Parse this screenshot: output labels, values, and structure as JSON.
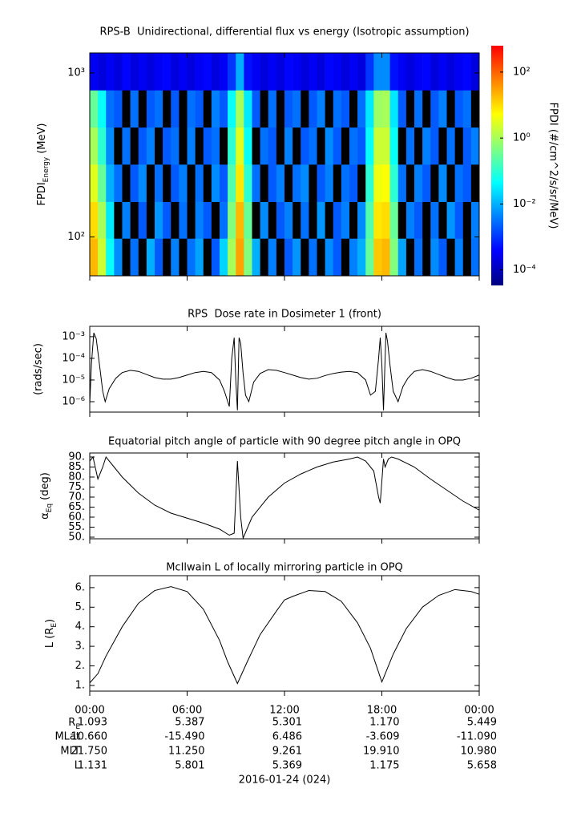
{
  "chart_data": [
    {
      "type": "heatmap",
      "title": "RPS-B  Unidirectional, differential flux vs energy (Isotropic assumption)",
      "ylabel": {
        "text": "FPDI",
        "sub": "Energy",
        "suffix": "(MeV)"
      },
      "xlim": [
        0,
        24
      ],
      "xticks": [
        0,
        6,
        12,
        18,
        24
      ],
      "ylim": [
        58,
        1324
      ],
      "ylog": true,
      "yticks": [
        {
          "value": 100,
          "label": "10²"
        },
        {
          "value": 1000,
          "label": "10³"
        }
      ],
      "time_edges": [
        0,
        0.5,
        1,
        1.5,
        2,
        2.5,
        3,
        3.5,
        4,
        4.5,
        5,
        5.5,
        6,
        6.5,
        7,
        7.5,
        8,
        8.5,
        9,
        9.5,
        10,
        10.5,
        11,
        11.5,
        12,
        12.5,
        13,
        13.5,
        14,
        14.5,
        15,
        15.5,
        16,
        16.5,
        17,
        17.5,
        18,
        18.5,
        19,
        19.5,
        20,
        20.5,
        21,
        21.5,
        22,
        22.5,
        23,
        23.5,
        24
      ],
      "energy_edges": [
        58,
        98,
        164,
        277,
        466,
        785,
        1324
      ],
      "z": [
        [
          20,
          2,
          0.05,
          0.005,
          null,
          0.003,
          null,
          0.01,
          0.002,
          null,
          0.004,
          null,
          0.003,
          0.008,
          null,
          0.002,
          0.02,
          1,
          30,
          0.5,
          0.01,
          null,
          0.004,
          null,
          0.002,
          0.006,
          null,
          0.003,
          null,
          0.005,
          0.002,
          null,
          0.004,
          0.01,
          0.3,
          15,
          20,
          0.5,
          0.008,
          null,
          0.003,
          null,
          0.005,
          0.002,
          null,
          0.004,
          null,
          0.003
        ],
        [
          10,
          1,
          0.03,
          null,
          0.004,
          null,
          0.002,
          null,
          0.006,
          0.002,
          null,
          0.003,
          null,
          0.004,
          0.002,
          null,
          0.003,
          0.5,
          20,
          0.3,
          null,
          0.005,
          null,
          0.002,
          0.004,
          null,
          0.003,
          null,
          0.006,
          null,
          0.002,
          0.004,
          null,
          0.005,
          0.2,
          8,
          10,
          0.3,
          null,
          0.004,
          0.002,
          null,
          0.003,
          null,
          0.006,
          0.002,
          null,
          0.004
        ],
        [
          3,
          0.3,
          0.01,
          0.003,
          null,
          0.002,
          0.005,
          null,
          0.003,
          null,
          0.002,
          0.004,
          null,
          0.003,
          null,
          0.005,
          0.002,
          0.2,
          8,
          0.1,
          0.003,
          null,
          0.002,
          0.004,
          null,
          0.003,
          0.005,
          null,
          0.002,
          0.004,
          null,
          0.003,
          0.002,
          null,
          0.1,
          4,
          5,
          0.1,
          0.003,
          null,
          0.004,
          0.002,
          null,
          0.005,
          null,
          0.003,
          0.002,
          null
        ],
        [
          1,
          0.1,
          0.005,
          null,
          0.003,
          null,
          0.002,
          0.004,
          null,
          0.002,
          0.003,
          null,
          0.004,
          null,
          0.002,
          0.003,
          null,
          0.1,
          3,
          0.05,
          null,
          0.003,
          0.002,
          null,
          0.004,
          null,
          0.002,
          0.003,
          null,
          0.005,
          0.002,
          null,
          0.003,
          0.002,
          0.05,
          2,
          2,
          0.05,
          null,
          0.003,
          null,
          0.004,
          0.002,
          null,
          0.003,
          null,
          0.002,
          0.004
        ],
        [
          0.3,
          0.05,
          0.003,
          0.002,
          null,
          0.003,
          null,
          0.002,
          0.003,
          null,
          0.002,
          null,
          0.003,
          0.002,
          null,
          0.004,
          0.002,
          0.05,
          1,
          0.03,
          0.002,
          null,
          0.003,
          null,
          0.002,
          0.003,
          null,
          0.002,
          0.004,
          null,
          0.003,
          0.002,
          null,
          0.003,
          0.03,
          0.8,
          1,
          0.03,
          0.002,
          null,
          0.003,
          null,
          0.002,
          0.004,
          null,
          0.002,
          0.003,
          null
        ],
        [
          0.0003,
          0.0002,
          0.0003,
          0.0002,
          0.0004,
          0.0002,
          0.0003,
          0.0002,
          0.0003,
          0.0004,
          0.0002,
          0.0003,
          0.0002,
          0.0003,
          0.0004,
          0.0002,
          0.0003,
          0.001,
          0.01,
          0.0005,
          0.0003,
          0.0002,
          0.0003,
          0.0002,
          0.0004,
          0.0003,
          0.0002,
          0.0003,
          0.0002,
          0.0004,
          0.0003,
          0.0002,
          0.0003,
          0.0002,
          0.001,
          0.005,
          0.005,
          0.0005,
          0.0003,
          0.0002,
          0.0003,
          0.0004,
          0.0002,
          0.0003,
          0.0002,
          0.0003,
          0.0004,
          0.0002
        ]
      ],
      "colormap": [
        "#00007f",
        "#0000ff",
        "#0080ff",
        "#00ffff",
        "#80ff80",
        "#ffff00",
        "#ff8000",
        "#ff0000"
      ],
      "colorbar": {
        "label": "FPDI (#/cm^2/s/sr/MeV)",
        "zlim": [
          3.4e-05,
          630
        ],
        "log": true,
        "ticks": [
          {
            "value": 100,
            "label": "10²"
          },
          {
            "value": 1,
            "label": "10⁰"
          },
          {
            "value": 0.01,
            "label": "10⁻²"
          },
          {
            "value": 0.0001,
            "label": "10⁻⁴"
          }
        ]
      }
    },
    {
      "type": "line",
      "title": "RPS  Dose rate in Dosimeter 1 (front)",
      "ylabel": "(rads/sec)",
      "xlim": [
        0,
        24
      ],
      "xticks": [
        0,
        6,
        12,
        18,
        24
      ],
      "ylim": [
        3.3e-07,
        0.003
      ],
      "ylog": true,
      "yticks": [
        {
          "value": 0.001,
          "label": "10⁻³"
        },
        {
          "value": 0.0001,
          "label": "10⁻⁴"
        },
        {
          "value": 1e-05,
          "label": "10⁻⁵"
        },
        {
          "value": 1e-06,
          "label": "10⁻⁶"
        }
      ],
      "color": "#000000",
      "x": [
        0,
        0.1,
        0.25,
        0.4,
        0.6,
        0.8,
        0.95,
        1.2,
        1.6,
        2,
        2.5,
        3,
        3.5,
        4,
        4.5,
        5,
        5.5,
        6,
        6.5,
        7,
        7.5,
        8,
        8.3,
        8.6,
        8.75,
        8.9,
        9.0,
        9.1,
        9.2,
        9.3,
        9.45,
        9.6,
        9.8,
        10.1,
        10.5,
        11,
        11.5,
        12,
        12.5,
        13,
        13.5,
        14,
        14.5,
        15,
        15.5,
        16,
        16.5,
        17,
        17.3,
        17.6,
        17.8,
        17.9,
        18.0,
        18.1,
        18.25,
        18.35,
        18.5,
        18.7,
        19.0,
        19.3,
        19.6,
        20,
        20.5,
        21,
        21.5,
        22,
        22.5,
        23,
        23.5,
        24
      ],
      "values": [
        8e-07,
        5e-05,
        0.0015,
        0.0008,
        5e-05,
        3e-06,
        1e-06,
        4e-06,
        1.2e-05,
        2.2e-05,
        2.8e-05,
        2.5e-05,
        1.8e-05,
        1.3e-05,
        1.1e-05,
        1.1e-05,
        1.3e-05,
        1.7e-05,
        2.2e-05,
        2.5e-05,
        2.2e-05,
        1e-05,
        3e-06,
        6e-07,
        0.0001,
        0.0009,
        1e-05,
        4e-07,
        0.0009,
        0.0005,
        2e-05,
        2e-06,
        1e-06,
        8e-06,
        2e-05,
        3e-05,
        2.8e-05,
        2.2e-05,
        1.7e-05,
        1.3e-05,
        1.1e-05,
        1.2e-05,
        1.6e-05,
        2e-05,
        2.3e-05,
        2.5e-05,
        2.2e-05,
        1e-05,
        2e-06,
        3e-06,
        0.0001,
        0.0009,
        5e-05,
        4e-07,
        0.0015,
        0.0006,
        5e-05,
        3e-06,
        1e-06,
        5e-06,
        1.2e-05,
        2.5e-05,
        3e-05,
        2.5e-05,
        1.8e-05,
        1.3e-05,
        1e-05,
        1e-05,
        1.2e-05,
        1.7e-05
      ]
    },
    {
      "type": "line",
      "title": "Equatorial pitch angle of particle with 90 degree pitch angle in OPQ",
      "ylabel": {
        "text": "α",
        "sub": "Eq",
        "suffix": "(deg)"
      },
      "xlim": [
        0,
        24
      ],
      "xticks": [
        0,
        6,
        12,
        18,
        24
      ],
      "ylim": [
        49.2,
        92
      ],
      "yticks": [
        {
          "value": 90,
          "label": "90."
        },
        {
          "value": 85,
          "label": "85."
        },
        {
          "value": 80,
          "label": "80."
        },
        {
          "value": 75,
          "label": "75."
        },
        {
          "value": 70,
          "label": "70."
        },
        {
          "value": 65,
          "label": "65."
        },
        {
          "value": 60,
          "label": "60."
        },
        {
          "value": 55,
          "label": "55."
        },
        {
          "value": 50,
          "label": "50."
        }
      ],
      "color": "#000000",
      "x": [
        0,
        0.2,
        0.5,
        0.8,
        1.0,
        1.5,
        2,
        3,
        4,
        5,
        6,
        7,
        8,
        8.6,
        8.9,
        9.1,
        9.3,
        9.45,
        10,
        11,
        12,
        13,
        14,
        15,
        16,
        16.5,
        17,
        17.5,
        17.8,
        17.9,
        18.1,
        18.2,
        18.4,
        18.6,
        19,
        20,
        21,
        22,
        23,
        24
      ],
      "values": [
        88,
        90,
        79,
        85,
        90,
        85,
        80,
        72,
        66,
        62,
        59.5,
        57,
        54,
        51,
        52,
        88,
        60,
        49.5,
        60,
        70,
        77,
        81.5,
        85,
        87.5,
        89,
        90,
        88,
        83,
        70,
        67,
        89,
        85,
        89,
        90,
        89,
        85,
        79,
        73.5,
        68,
        63.5
      ]
    },
    {
      "type": "line",
      "title": "McIlwain L of locally mirroring particle in OPQ",
      "ylabel": {
        "text": "L (R",
        "sub": "E",
        "suffix": ")"
      },
      "xlim": [
        0,
        24
      ],
      "xticks": [
        {
          "value": 0,
          "label": "00:00"
        },
        {
          "value": 6,
          "label": "06:00"
        },
        {
          "value": 12,
          "label": "12:00"
        },
        {
          "value": 18,
          "label": "18:00"
        },
        {
          "value": 24,
          "label": "00:00"
        }
      ],
      "ylim": [
        0.71,
        6.61
      ],
      "yticks": [
        {
          "value": 1,
          "label": "1."
        },
        {
          "value": 2,
          "label": "2."
        },
        {
          "value": 3,
          "label": "3."
        },
        {
          "value": 4,
          "label": "4."
        },
        {
          "value": 5,
          "label": "5."
        },
        {
          "value": 6,
          "label": "6."
        }
      ],
      "color": "#000000",
      "x": [
        0,
        0.5,
        1,
        2,
        3,
        4,
        5,
        6,
        7,
        8,
        8.5,
        9.1,
        9.7,
        10.5,
        11.5,
        12,
        12.5,
        13.5,
        14.5,
        15.5,
        16.5,
        17.3,
        18,
        18.7,
        19.5,
        20.5,
        21.5,
        22.5,
        23.5,
        24
      ],
      "values": [
        1.13,
        1.6,
        2.5,
        4.0,
        5.2,
        5.85,
        6.05,
        5.8,
        4.9,
        3.3,
        2.2,
        1.1,
        2.2,
        3.6,
        4.8,
        5.37,
        5.55,
        5.85,
        5.8,
        5.3,
        4.2,
        2.9,
        1.18,
        2.6,
        3.9,
        5.0,
        5.6,
        5.9,
        5.8,
        5.66
      ]
    }
  ],
  "ephemeris": {
    "rows": [
      {
        "label": {
          "text": "R",
          "sub": "E"
        },
        "values": [
          "1.093",
          "5.387",
          "5.301",
          "1.170",
          "5.449"
        ]
      },
      {
        "label": "MLat",
        "values": [
          "10.660",
          "-15.490",
          "6.486",
          "-3.609",
          "-11.090"
        ]
      },
      {
        "label": "MLT",
        "values": [
          "21.750",
          "11.250",
          "9.261",
          "19.910",
          "10.980"
        ]
      },
      {
        "label": "L",
        "values": [
          "1.131",
          "5.801",
          "5.369",
          "1.175",
          "5.658"
        ]
      }
    ],
    "date": "2016-01-24 (024)"
  }
}
